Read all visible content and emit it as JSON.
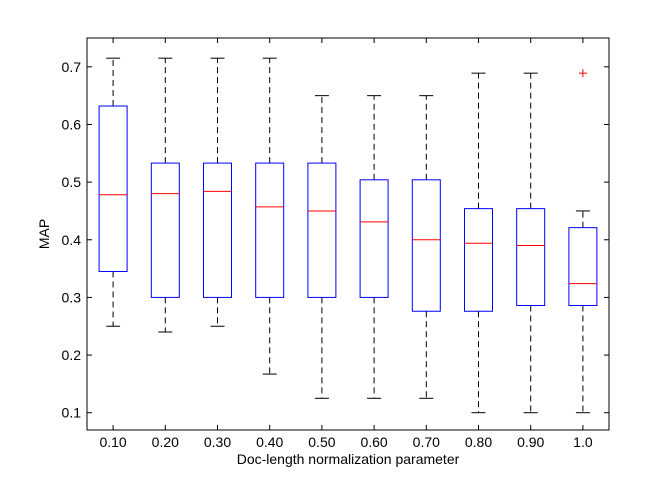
{
  "chart_data": {
    "type": "boxplot",
    "title": "",
    "xlabel": "Doc-length normalization parameter",
    "ylabel": "MAP",
    "ylim": [
      0.07,
      0.75
    ],
    "yticks": [
      0.1,
      0.2,
      0.3,
      0.4,
      0.5,
      0.6,
      0.7
    ],
    "ytick_labels": [
      "0.1",
      "0.2",
      "0.3",
      "0.4",
      "0.5",
      "0.6",
      "0.7"
    ],
    "categories": [
      "0.10",
      "0.20",
      "0.30",
      "0.40",
      "0.50",
      "0.60",
      "0.70",
      "0.80",
      "0.90",
      "1.0"
    ],
    "grid": false,
    "colors": {
      "box": "#0000ff",
      "median": "#ff0000",
      "whisker": "#000000",
      "outlier": "#ff0000",
      "axes": "#000000"
    },
    "boxes": [
      {
        "category": "0.10",
        "whisker_low": 0.25,
        "q1": 0.345,
        "median": 0.478,
        "q3": 0.632,
        "whisker_high": 0.715,
        "outliers": []
      },
      {
        "category": "0.20",
        "whisker_low": 0.24,
        "q1": 0.3,
        "median": 0.48,
        "q3": 0.533,
        "whisker_high": 0.715,
        "outliers": []
      },
      {
        "category": "0.30",
        "whisker_low": 0.25,
        "q1": 0.3,
        "median": 0.484,
        "q3": 0.533,
        "whisker_high": 0.715,
        "outliers": []
      },
      {
        "category": "0.40",
        "whisker_low": 0.167,
        "q1": 0.3,
        "median": 0.457,
        "q3": 0.533,
        "whisker_high": 0.715,
        "outliers": []
      },
      {
        "category": "0.50",
        "whisker_low": 0.125,
        "q1": 0.3,
        "median": 0.45,
        "q3": 0.533,
        "whisker_high": 0.65,
        "outliers": []
      },
      {
        "category": "0.60",
        "whisker_low": 0.125,
        "q1": 0.3,
        "median": 0.431,
        "q3": 0.504,
        "whisker_high": 0.65,
        "outliers": []
      },
      {
        "category": "0.70",
        "whisker_low": 0.125,
        "q1": 0.276,
        "median": 0.4,
        "q3": 0.504,
        "whisker_high": 0.65,
        "outliers": []
      },
      {
        "category": "0.80",
        "whisker_low": 0.1,
        "q1": 0.276,
        "median": 0.394,
        "q3": 0.454,
        "whisker_high": 0.689,
        "outliers": []
      },
      {
        "category": "0.90",
        "whisker_low": 0.1,
        "q1": 0.286,
        "median": 0.39,
        "q3": 0.454,
        "whisker_high": 0.689,
        "outliers": []
      },
      {
        "category": "1.0",
        "whisker_low": 0.1,
        "q1": 0.286,
        "median": 0.324,
        "q3": 0.421,
        "whisker_high": 0.45,
        "outliers": [
          0.689
        ]
      }
    ]
  }
}
